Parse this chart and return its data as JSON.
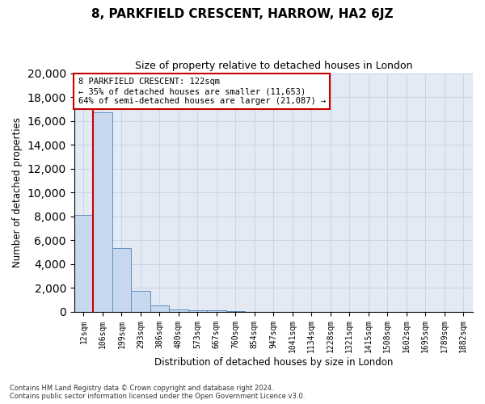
{
  "title": "8, PARKFIELD CRESCENT, HARROW, HA2 6JZ",
  "subtitle": "Size of property relative to detached houses in London",
  "xlabel": "Distribution of detached houses by size in London",
  "ylabel": "Number of detached properties",
  "categories": [
    "12sqm",
    "106sqm",
    "199sqm",
    "293sqm",
    "386sqm",
    "480sqm",
    "573sqm",
    "667sqm",
    "760sqm",
    "854sqm",
    "947sqm",
    "1041sqm",
    "1134sqm",
    "1228sqm",
    "1321sqm",
    "1415sqm",
    "1508sqm",
    "1602sqm",
    "1695sqm",
    "1789sqm",
    "1882sqm"
  ],
  "bar_values": [
    8100,
    16700,
    5300,
    1750,
    500,
    200,
    100,
    80,
    60,
    0,
    0,
    0,
    0,
    0,
    0,
    0,
    0,
    0,
    0,
    0,
    0
  ],
  "bar_color": "#c8d8ee",
  "bar_edge_color": "#6090c0",
  "property_line_color": "#cc0000",
  "annotation_text": "8 PARKFIELD CRESCENT: 122sqm\n← 35% of detached houses are smaller (11,653)\n64% of semi-detached houses are larger (21,087) →",
  "annotation_box_facecolor": "#ffffff",
  "annotation_box_edgecolor": "#cc0000",
  "ylim": [
    0,
    20000
  ],
  "yticks": [
    0,
    2000,
    4000,
    6000,
    8000,
    10000,
    12000,
    14000,
    16000,
    18000,
    20000
  ],
  "grid_color": "#c8d4e8",
  "background_color": "#e4eaf4",
  "footer_line1": "Contains HM Land Registry data © Crown copyright and database right 2024.",
  "footer_line2": "Contains public sector information licensed under the Open Government Licence v3.0."
}
